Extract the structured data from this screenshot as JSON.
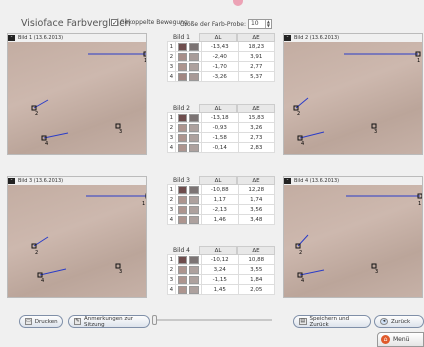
{
  "header": {
    "title": "Visioface Farbvergleich",
    "checkbox_label": "Gekoppelte Bewegung",
    "size_label": "Größe der Farb-Probe:",
    "size_value": "10"
  },
  "panels": [
    {
      "label": "Bild 1   (13.6.2013)",
      "markers": [
        "1",
        "2",
        "3",
        "4"
      ]
    },
    {
      "label": "Bild 2   (13.6.2013)",
      "markers": [
        "1",
        "2",
        "3",
        "4"
      ]
    },
    {
      "label": "Bild 3   (13.6.2013)",
      "markers": [
        "1",
        "2",
        "3",
        "4"
      ]
    },
    {
      "label": "Bild 4   (13.6.2013)",
      "markers": [
        "1",
        "2",
        "3",
        "4"
      ]
    }
  ],
  "tables": [
    {
      "name": "Bild 1",
      "col1": "ΔL",
      "col2": "ΔE",
      "rows": [
        {
          "n": "1",
          "c1": "#6e4d4d",
          "c2": "#7c7474",
          "dl": "-13,43",
          "de": "18,23"
        },
        {
          "n": "2",
          "c1": "#a88f8a",
          "c2": "#a89c99",
          "dl": "-2,40",
          "de": "3,91"
        },
        {
          "n": "3",
          "c1": "#ad958f",
          "c2": "#ada19e",
          "dl": "-1,70",
          "de": "2,77"
        },
        {
          "n": "4",
          "c1": "#a28782",
          "c2": "#a89a97",
          "dl": "-3,26",
          "de": "5,37"
        }
      ]
    },
    {
      "name": "Bild 2",
      "col1": "ΔL",
      "col2": "ΔE",
      "rows": [
        {
          "n": "1",
          "c1": "#6e4d4d",
          "c2": "#7c7474",
          "dl": "-13,18",
          "de": "15,83"
        },
        {
          "n": "2",
          "c1": "#ad958f",
          "c2": "#ada19e",
          "dl": "-0,93",
          "de": "3,26"
        },
        {
          "n": "3",
          "c1": "#ad958f",
          "c2": "#ada19e",
          "dl": "-1,58",
          "de": "2,73"
        },
        {
          "n": "4",
          "c1": "#ad958f",
          "c2": "#ada19e",
          "dl": "-0,14",
          "de": "2,83"
        }
      ]
    },
    {
      "name": "Bild 3",
      "col1": "ΔL",
      "col2": "ΔE",
      "rows": [
        {
          "n": "1",
          "c1": "#6e4d4d",
          "c2": "#7c7474",
          "dl": "-10,88",
          "de": "12,28"
        },
        {
          "n": "2",
          "c1": "#ad958f",
          "c2": "#ada19e",
          "dl": "1,17",
          "de": "1,74"
        },
        {
          "n": "3",
          "c1": "#ad958f",
          "c2": "#ada19e",
          "dl": "-2,13",
          "de": "3,56"
        },
        {
          "n": "4",
          "c1": "#ad958f",
          "c2": "#ada19e",
          "dl": "1,46",
          "de": "3,48"
        }
      ]
    },
    {
      "name": "Bild 4",
      "col1": "ΔL",
      "col2": "ΔE",
      "rows": [
        {
          "n": "1",
          "c1": "#6e4d4d",
          "c2": "#7c7474",
          "dl": "-10,12",
          "de": "10,88"
        },
        {
          "n": "2",
          "c1": "#ad958f",
          "c2": "#ada19e",
          "dl": "3,24",
          "de": "3,55"
        },
        {
          "n": "3",
          "c1": "#ad958f",
          "c2": "#ada19e",
          "dl": "-1,15",
          "de": "1,84"
        },
        {
          "n": "4",
          "c1": "#ad958f",
          "c2": "#ada19e",
          "dl": "1,45",
          "de": "2,05"
        }
      ]
    }
  ],
  "footer": {
    "print": "Drucken",
    "notes": "Anmerkungen zur Sitzung",
    "slider_value": 0,
    "save_back": "Speichern und Zurück",
    "back": "Zurück",
    "menu": "Menü"
  },
  "icons": {
    "print": "printer-icon",
    "notes": "pen-icon",
    "save": "save-icon",
    "back": "back-arrow-icon",
    "menu": "home-icon",
    "minimize": "minus-icon"
  },
  "colors": {
    "marker_line": "#2a3cc8",
    "button_border": "#7f8fa8",
    "skin": "#c9b5aa"
  }
}
